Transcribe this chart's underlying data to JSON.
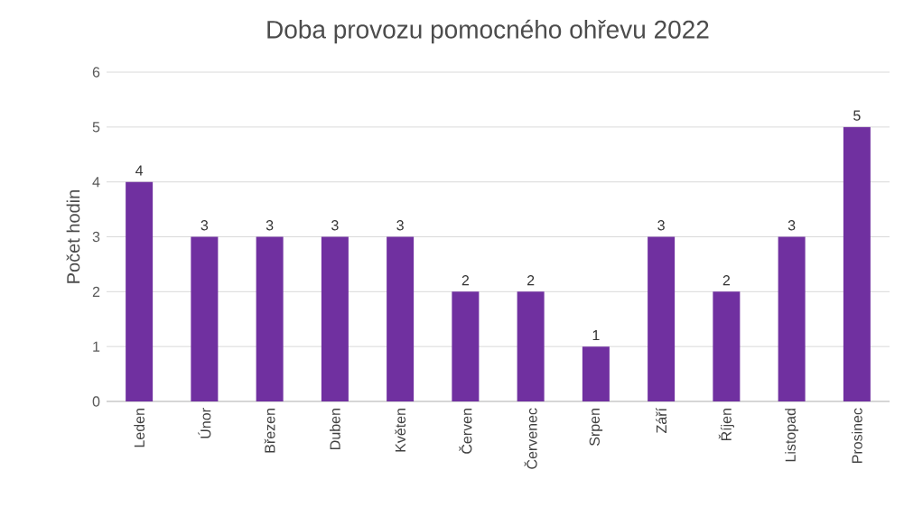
{
  "chart_data": {
    "type": "bar",
    "title": "Doba provozu pomocného ohřevu 2022",
    "ylabel": "Počet hodin",
    "categories": [
      "Leden",
      "Únor",
      "Březen",
      "Duben",
      "Květen",
      "Červen",
      "Červenec",
      "Srpen",
      "Září",
      "Říjen",
      "Listopad",
      "Prosinec"
    ],
    "values": [
      4,
      3,
      3,
      3,
      3,
      2,
      2,
      1,
      3,
      2,
      3,
      5
    ],
    "color": "#7030a0",
    "ylim": [
      0,
      6
    ],
    "yticks": [
      0,
      1,
      2,
      3,
      4,
      5,
      6
    ],
    "grid": "y",
    "data_labels": true
  }
}
